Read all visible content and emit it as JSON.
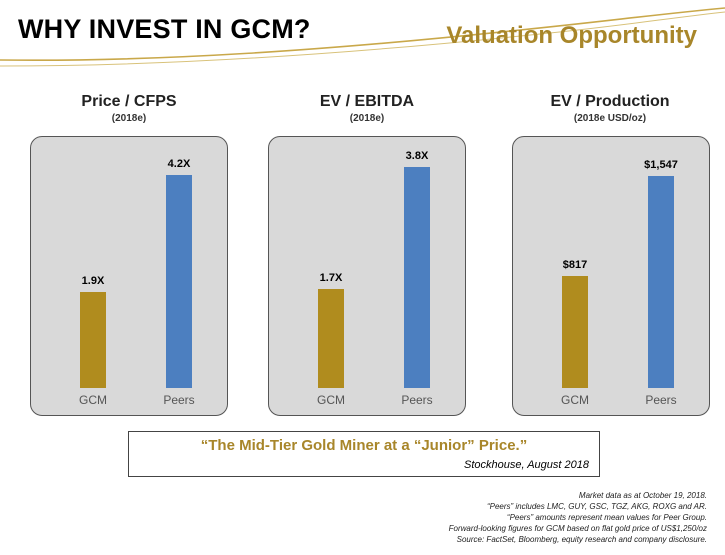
{
  "header": {
    "title": "WHY INVEST IN GCM?",
    "subtitle": "Valuation Opportunity"
  },
  "colors": {
    "gold": "#b08c1e",
    "blue": "#4c7fc0",
    "panel": "#d9d9d9",
    "accent_text": "#a8862a"
  },
  "chart_data": [
    {
      "type": "bar",
      "title": "Price / CFPS",
      "subtitle": "(2018e)",
      "categories": [
        "GCM",
        "Peers"
      ],
      "values": [
        1.9,
        4.2
      ],
      "labels": [
        "1.9X",
        "4.2X"
      ],
      "ylim": [
        0,
        4.6
      ]
    },
    {
      "type": "bar",
      "title": "EV / EBITDA",
      "subtitle": "(2018e)",
      "categories": [
        "GCM",
        "Peers"
      ],
      "values": [
        1.7,
        3.8
      ],
      "labels": [
        "1.7X",
        "3.8X"
      ],
      "ylim": [
        0,
        4.0
      ]
    },
    {
      "type": "bar",
      "title": "EV / Production",
      "subtitle": "(2018e USD/oz)",
      "categories": [
        "GCM",
        "Peers"
      ],
      "values": [
        817,
        1547
      ],
      "labels": [
        "$817",
        "$1,547"
      ],
      "ylim": [
        0,
        1700
      ]
    }
  ],
  "quote": {
    "text": "“The Mid-Tier Gold Miner at a “Junior” Price.”",
    "source": "Stockhouse, August 2018"
  },
  "footnotes": [
    "Market data as at October 19, 2018.",
    "“Peers” includes LMC, GUY, GSC, TGZ, AKG, ROXG and AR.",
    "“Peers” amounts represent mean values for Peer Group.",
    "Forward-looking figures for GCM based on flat gold price of US$1,250/oz",
    "Source: FactSet, Bloomberg, equity research and company disclosure."
  ]
}
